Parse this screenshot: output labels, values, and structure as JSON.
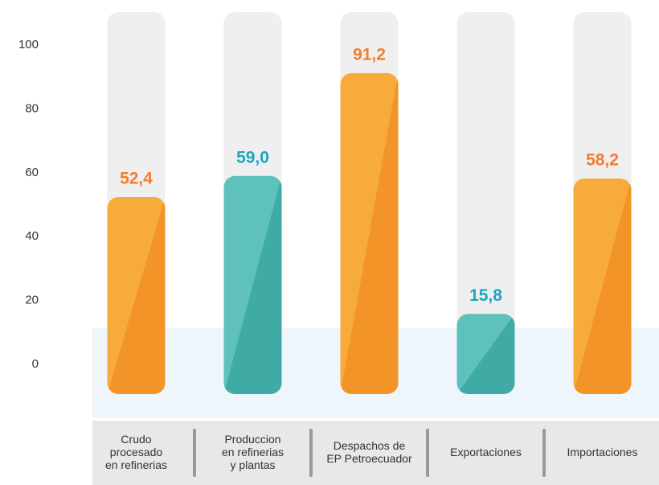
{
  "chart_data": {
    "type": "bar",
    "categories": [
      [
        "Crudo",
        "procesado",
        "en refinerias"
      ],
      [
        "Produccion",
        "en refinerias",
        "y plantas"
      ],
      [
        "Despachos de",
        "EP Petroecuador"
      ],
      [
        "Exportaciones"
      ],
      [
        "Importaciones"
      ]
    ],
    "values": [
      52.4,
      59.0,
      91.2,
      15.8,
      58.2
    ],
    "value_labels": [
      "52,4",
      "59,0",
      "91,2",
      "15,8",
      "58,2"
    ],
    "colors": [
      "#f7ab3b",
      "#5fc1bd",
      "#f7ab3b",
      "#5fc1bd",
      "#f7ab3b"
    ],
    "shade_colors": [
      "#f39428",
      "#40aaa5",
      "#f39428",
      "#40aaa5",
      "#f39428"
    ],
    "label_colors": [
      "#f07d30",
      "#1aa7bf",
      "#f07d30",
      "#1aa7bf",
      "#f07d30"
    ],
    "ylim": [
      0,
      100
    ],
    "yticks": [
      0,
      20,
      40,
      60,
      80,
      100
    ]
  }
}
